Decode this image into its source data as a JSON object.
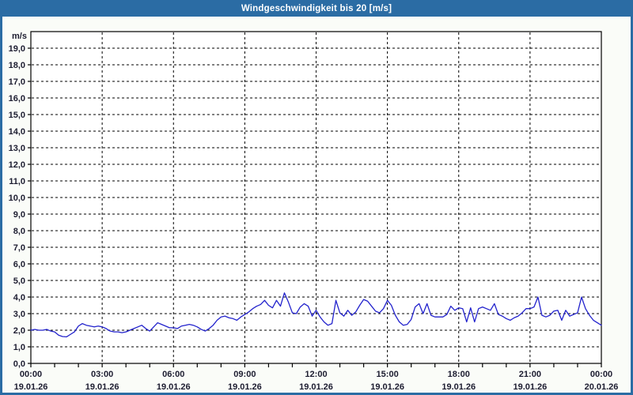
{
  "header": {
    "title": "Windgeschwindigkeit bis 20 [m/s]"
  },
  "colors": {
    "titlebar_bg": "#2B6CA4",
    "titlebar_text": "#FFFFFF",
    "frame_border": "#2B6CA4",
    "page_bg": "#FAFCF8",
    "plot_bg": "#FFFFFF",
    "grid": "#000000",
    "axis": "#000000",
    "tick_text": "#1C1C30",
    "line": "#2222CC"
  },
  "chart_data": {
    "type": "line",
    "title": "Windgeschwindigkeit bis 20 [m/s]",
    "unit_label": "m/s",
    "ylabel": "m/s",
    "xlabel": "",
    "ylim": [
      0,
      20
    ],
    "y_tick_step": 1.0,
    "grid": "dashed, horizontal every 1.0 m/s, vertical every 3 h",
    "legend_position": "none",
    "y_tick_labels": [
      "0,0",
      "1,0",
      "2,0",
      "3,0",
      "4,0",
      "5,0",
      "6,0",
      "7,0",
      "8,0",
      "9,0",
      "10,0",
      "11,0",
      "12,0",
      "13,0",
      "14,0",
      "15,0",
      "16,0",
      "17,0",
      "18,0",
      "19,0"
    ],
    "x_minor_tick_every_hours": 1,
    "x_major_tick_every_hours": 3,
    "x_total_hours": 24,
    "x_major_ticks": [
      {
        "time": "00:00",
        "date": "19.01.26"
      },
      {
        "time": "03:00",
        "date": "19.01.26"
      },
      {
        "time": "06:00",
        "date": "19.01.26"
      },
      {
        "time": "09:00",
        "date": "19.01.26"
      },
      {
        "time": "12:00",
        "date": "19.01.26"
      },
      {
        "time": "15:00",
        "date": "19.01.26"
      },
      {
        "time": "18:00",
        "date": "19.01.26"
      },
      {
        "time": "21:00",
        "date": "19.01.26"
      },
      {
        "time": "00:00",
        "date": "20.01.26"
      }
    ],
    "sample_interval_minutes": 10,
    "series": [
      {
        "name": "Windgeschwindigkeit",
        "values": [
          2.0,
          2.05,
          2.0,
          2.0,
          2.05,
          1.95,
          1.9,
          1.7,
          1.62,
          1.6,
          1.75,
          1.9,
          2.25,
          2.4,
          2.3,
          2.25,
          2.2,
          2.25,
          2.2,
          2.1,
          1.95,
          1.9,
          1.9,
          1.85,
          1.9,
          2.0,
          2.1,
          2.2,
          2.3,
          2.1,
          1.95,
          2.2,
          2.45,
          2.35,
          2.25,
          2.15,
          2.15,
          2.1,
          2.25,
          2.3,
          2.35,
          2.3,
          2.2,
          2.05,
          1.95,
          2.1,
          2.3,
          2.6,
          2.8,
          2.85,
          2.75,
          2.7,
          2.6,
          2.8,
          2.95,
          3.1,
          3.3,
          3.45,
          3.55,
          3.8,
          3.5,
          3.35,
          3.8,
          3.45,
          4.25,
          3.7,
          3.05,
          3.0,
          3.4,
          3.6,
          3.45,
          2.85,
          3.2,
          2.8,
          2.5,
          2.3,
          2.4,
          3.8,
          3.05,
          2.85,
          3.2,
          2.9,
          3.1,
          3.5,
          3.85,
          3.75,
          3.45,
          3.15,
          3.05,
          3.3,
          3.8,
          3.5,
          2.9,
          2.5,
          2.3,
          2.35,
          2.65,
          3.4,
          3.6,
          3.0,
          3.6,
          2.9,
          2.8,
          2.8,
          2.8,
          2.95,
          3.45,
          3.2,
          3.35,
          3.3,
          2.5,
          3.35,
          2.5,
          3.3,
          3.4,
          3.3,
          3.2,
          3.6,
          2.95,
          2.85,
          2.7,
          2.6,
          2.75,
          2.85,
          3.05,
          3.3,
          3.3,
          3.4,
          4.0,
          2.9,
          2.8,
          2.9,
          3.15,
          3.2,
          2.6,
          3.2,
          2.85,
          2.95,
          3.05,
          4.0,
          3.3,
          2.9,
          2.6,
          2.45,
          2.3
        ]
      }
    ]
  }
}
